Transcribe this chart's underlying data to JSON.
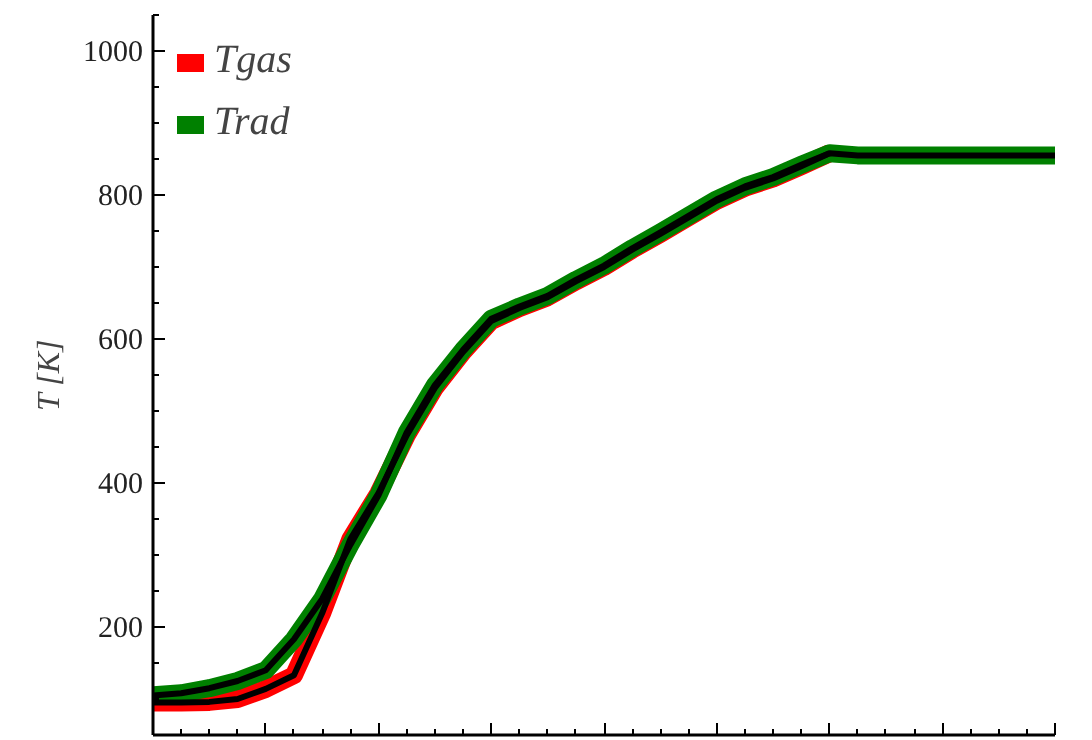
{
  "chart_data": {
    "type": "line",
    "ylabel": "T [K]",
    "ylim": [
      50,
      1050
    ],
    "yticks": [
      200,
      400,
      600,
      800,
      1000
    ],
    "tick_labels": "y",
    "legend": "top left",
    "grid": false,
    "categories": [
      null,
      null,
      null,
      null,
      null,
      null,
      null,
      null,
      null,
      null,
      null,
      null,
      null,
      null,
      null,
      null,
      null,
      null,
      null,
      null,
      null,
      null,
      null,
      null,
      null,
      null,
      null,
      null,
      null,
      null,
      null,
      null,
      null
    ],
    "series": [
      {
        "name": "Tgas",
        "color": "#ff0000",
        "values": [
          95,
          95,
          96,
          100,
          114,
          133,
          219,
          322,
          386,
          466,
          532,
          582,
          625,
          643,
          658,
          680,
          700,
          724,
          746,
          769,
          792,
          810,
          823,
          840,
          858,
          null,
          null,
          null,
          null,
          null,
          null,
          null,
          null
        ]
      },
      {
        "name": "Trad",
        "color": "#008000",
        "values": [
          105,
          108,
          115,
          125,
          140,
          183,
          239,
          314,
          383,
          470,
          536,
          585,
          628,
          645,
          660,
          682,
          702,
          726,
          748,
          771,
          794,
          812,
          825,
          842,
          858,
          855,
          855,
          855,
          855,
          855,
          855,
          855,
          855
        ]
      },
      {
        "color": "#000000",
        "values": [
          95,
          95,
          96,
          100,
          114,
          133,
          219,
          322,
          386,
          466,
          532,
          582,
          625,
          643,
          658,
          680,
          700,
          724,
          746,
          769,
          792,
          810,
          823,
          840,
          858,
          null,
          null,
          null,
          null,
          null,
          null,
          null,
          null
        ]
      },
      {
        "color": "#000000",
        "values": [
          105,
          108,
          115,
          125,
          140,
          183,
          239,
          314,
          383,
          470,
          536,
          585,
          628,
          645,
          660,
          682,
          702,
          726,
          748,
          771,
          794,
          812,
          825,
          842,
          858,
          855,
          855,
          855,
          855,
          855,
          855,
          855,
          855
        ]
      }
    ]
  }
}
